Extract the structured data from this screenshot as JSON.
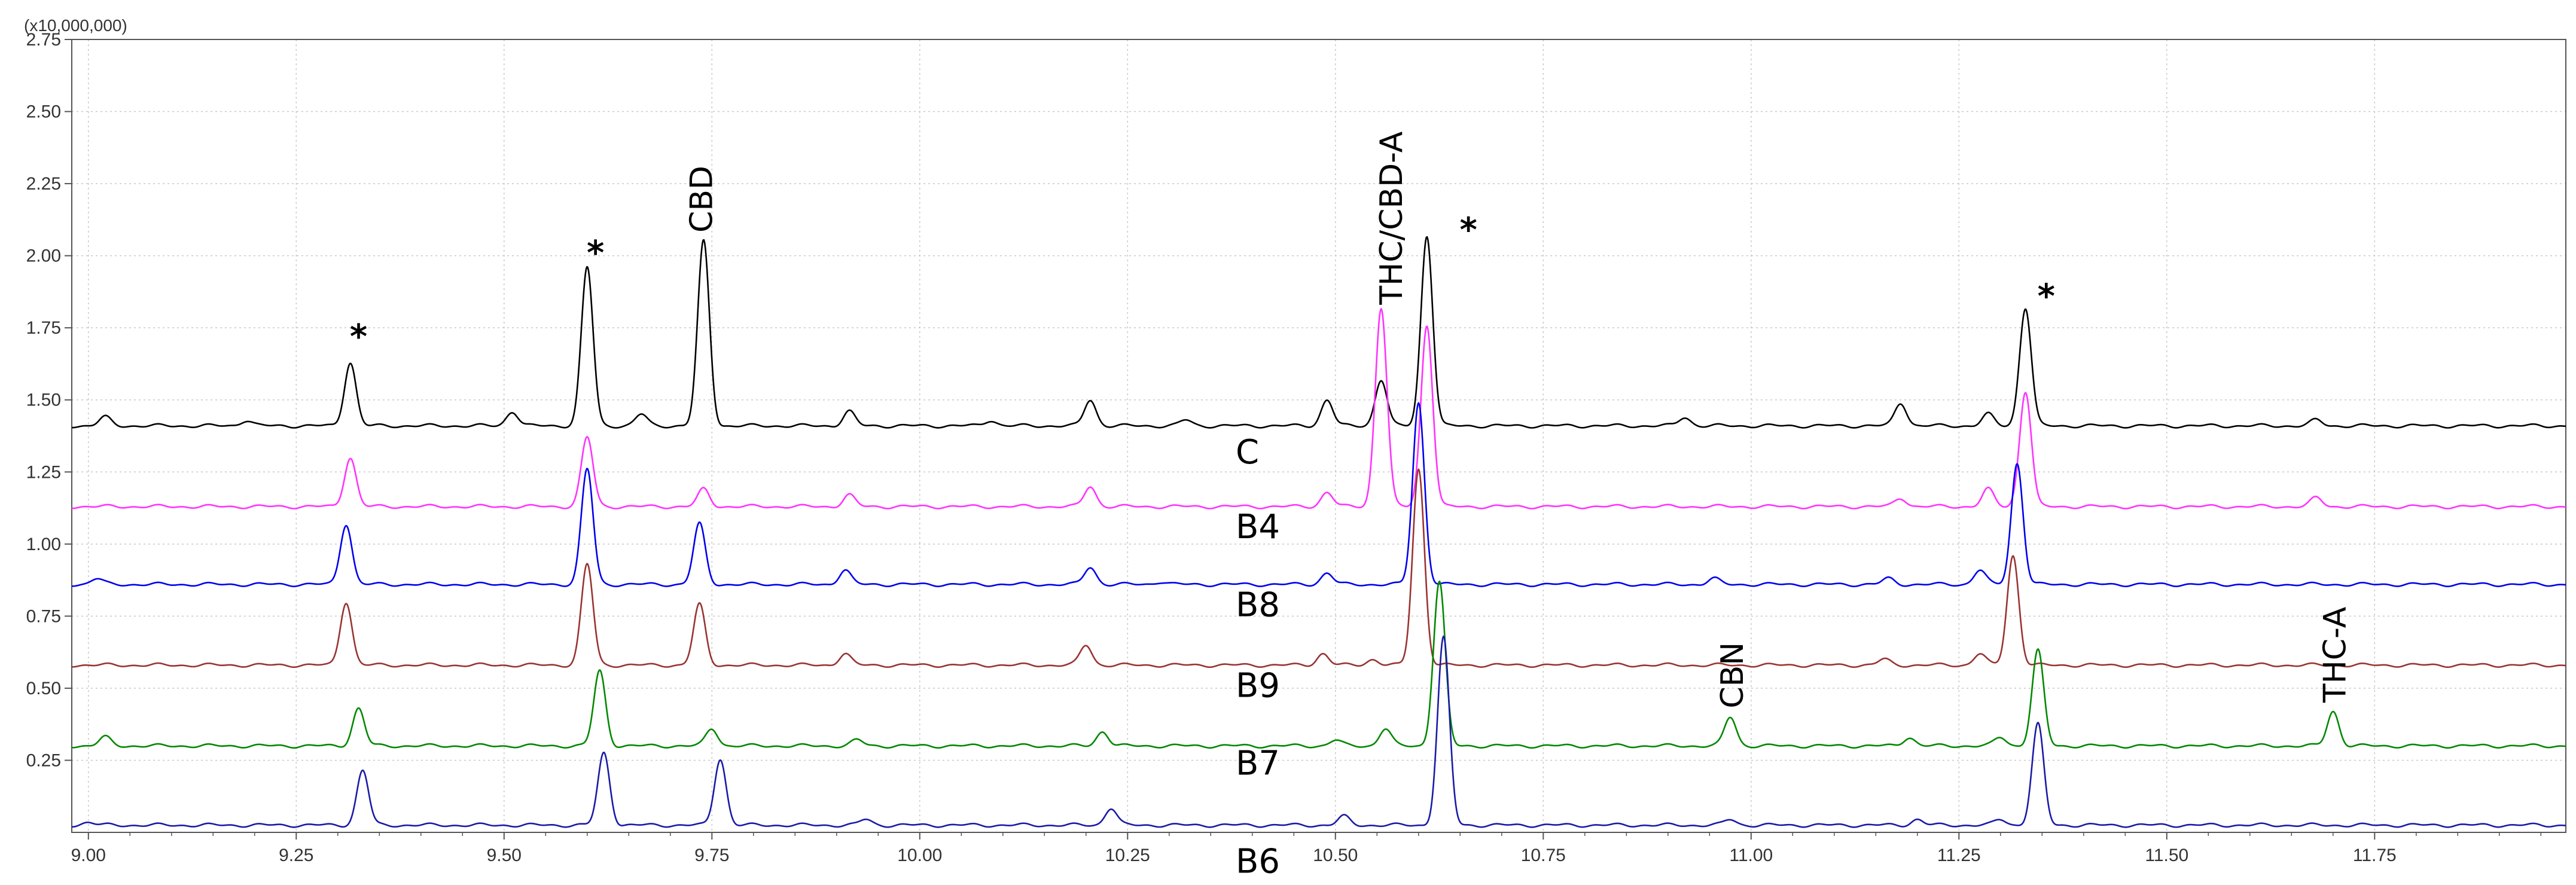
{
  "chart_data": {
    "type": "line",
    "y_multiplier_label": "(x10,000,000)",
    "xlim": [
      8.98,
      11.98
    ],
    "ylim": [
      0,
      2.75
    ],
    "x_ticks": [
      "9.00",
      "9.25",
      "9.50",
      "9.75",
      "10.00",
      "10.25",
      "10.50",
      "10.75",
      "11.00",
      "11.25",
      "11.50",
      "11.75"
    ],
    "x_tick_values": [
      9.0,
      9.25,
      9.5,
      9.75,
      10.0,
      10.25,
      10.5,
      10.75,
      11.0,
      11.25,
      11.5,
      11.75
    ],
    "y_ticks": [
      "0.25",
      "0.50",
      "0.75",
      "1.00",
      "1.25",
      "1.50",
      "1.75",
      "2.00",
      "2.25",
      "2.50",
      "2.75"
    ],
    "y_tick_values": [
      0.25,
      0.5,
      0.75,
      1.0,
      1.25,
      1.5,
      1.75,
      2.0,
      2.25,
      2.5,
      2.75
    ],
    "series": [
      {
        "name": "C",
        "color": "#000000",
        "baseline": 1.41,
        "peaks": [
          [
            9.02,
            0.03
          ],
          [
            9.19,
            0.02
          ],
          [
            9.315,
            0.22
          ],
          [
            9.51,
            0.05
          ],
          [
            9.6,
            0.55
          ],
          [
            9.665,
            0.04
          ],
          [
            9.74,
            0.64
          ],
          [
            9.915,
            0.05
          ],
          [
            10.085,
            0.02
          ],
          [
            10.205,
            0.09
          ],
          [
            10.32,
            0.02
          ],
          [
            10.49,
            0.09
          ],
          [
            10.555,
            0.16
          ],
          [
            10.61,
            0.66
          ],
          [
            10.92,
            0.03
          ],
          [
            11.18,
            0.08
          ],
          [
            11.285,
            0.04
          ],
          [
            11.33,
            0.41
          ],
          [
            11.68,
            0.02
          ]
        ]
      },
      {
        "name": "B4",
        "color": "#ff33ff",
        "baseline": 1.13,
        "peaks": [
          [
            9.315,
            0.17
          ],
          [
            9.6,
            0.24
          ],
          [
            9.74,
            0.06
          ],
          [
            9.915,
            0.04
          ],
          [
            10.205,
            0.07
          ],
          [
            10.49,
            0.05
          ],
          [
            10.555,
            0.69
          ],
          [
            10.61,
            0.63
          ],
          [
            11.18,
            0.03
          ],
          [
            11.285,
            0.06
          ],
          [
            11.33,
            0.4
          ],
          [
            11.68,
            0.03
          ]
        ]
      },
      {
        "name": "B8",
        "color": "#0000ee",
        "baseline": 0.86,
        "peaks": [
          [
            9.01,
            0.02
          ],
          [
            9.31,
            0.21
          ],
          [
            9.6,
            0.4
          ],
          [
            9.735,
            0.21
          ],
          [
            9.91,
            0.05
          ],
          [
            10.205,
            0.06
          ],
          [
            10.29,
            0.01
          ],
          [
            10.49,
            0.04
          ],
          [
            10.6,
            0.63
          ],
          [
            10.955,
            0.02
          ],
          [
            11.165,
            0.02
          ],
          [
            11.275,
            0.05
          ],
          [
            11.32,
            0.42
          ]
        ]
      },
      {
        "name": "B9",
        "color": "#993333",
        "baseline": 0.58,
        "peaks": [
          [
            9.31,
            0.22
          ],
          [
            9.6,
            0.35
          ],
          [
            9.735,
            0.21
          ],
          [
            9.91,
            0.04
          ],
          [
            10.2,
            0.07
          ],
          [
            10.485,
            0.04
          ],
          [
            10.545,
            0.02
          ],
          [
            10.6,
            0.68
          ],
          [
            11.16,
            0.02
          ],
          [
            11.275,
            0.04
          ],
          [
            11.315,
            0.38
          ]
        ]
      },
      {
        "name": "B7",
        "color": "#008800",
        "baseline": 0.3,
        "peaks": [
          [
            9.02,
            0.03
          ],
          [
            9.325,
            0.13
          ],
          [
            9.615,
            0.26
          ],
          [
            9.75,
            0.06
          ],
          [
            9.925,
            0.02
          ],
          [
            10.22,
            0.05
          ],
          [
            10.5,
            0.02
          ],
          [
            10.56,
            0.06
          ],
          [
            10.625,
            0.57
          ],
          [
            10.975,
            0.1
          ],
          [
            11.19,
            0.03
          ],
          [
            11.3,
            0.03
          ],
          [
            11.345,
            0.33
          ],
          [
            11.7,
            0.12
          ]
        ]
      },
      {
        "name": "B6",
        "color": "#1a1aa6",
        "baseline": 0.025,
        "peaks": [
          [
            9.0,
            0.01
          ],
          [
            9.33,
            0.19
          ],
          [
            9.62,
            0.25
          ],
          [
            9.76,
            0.23
          ],
          [
            9.935,
            0.02
          ],
          [
            10.23,
            0.06
          ],
          [
            10.51,
            0.03
          ],
          [
            10.63,
            0.65
          ],
          [
            10.975,
            0.02
          ],
          [
            11.2,
            0.02
          ],
          [
            11.3,
            0.02
          ],
          [
            11.345,
            0.35
          ]
        ]
      }
    ],
    "annotations": [
      {
        "text": "*",
        "x": 9.325,
        "y": 1.68
      },
      {
        "text": "*",
        "x": 9.61,
        "y": 1.97
      },
      {
        "text": "CBD",
        "x": 9.75,
        "y": 2.08,
        "rotate": true
      },
      {
        "text": "THC/CBD-A",
        "x": 10.58,
        "y": 1.83,
        "rotate": true
      },
      {
        "text": "*",
        "x": 10.66,
        "y": 2.05
      },
      {
        "text": "*",
        "x": 11.355,
        "y": 1.82
      },
      {
        "text": "CBN",
        "x": 10.99,
        "y": 0.43,
        "rotate": true
      },
      {
        "text": "THC-A",
        "x": 11.715,
        "y": 0.45,
        "rotate": true
      }
    ],
    "series_labels": [
      {
        "text": "C",
        "x": 10.38,
        "y": 1.28
      },
      {
        "text": "B4",
        "x": 10.38,
        "y": 1.02
      },
      {
        "text": "B8",
        "x": 10.38,
        "y": 0.75
      },
      {
        "text": "B9",
        "x": 10.38,
        "y": 0.47
      },
      {
        "text": "B7",
        "x": 10.38,
        "y": 0.2
      },
      {
        "text": "B6",
        "x": 10.38,
        "y": -0.14
      }
    ]
  }
}
